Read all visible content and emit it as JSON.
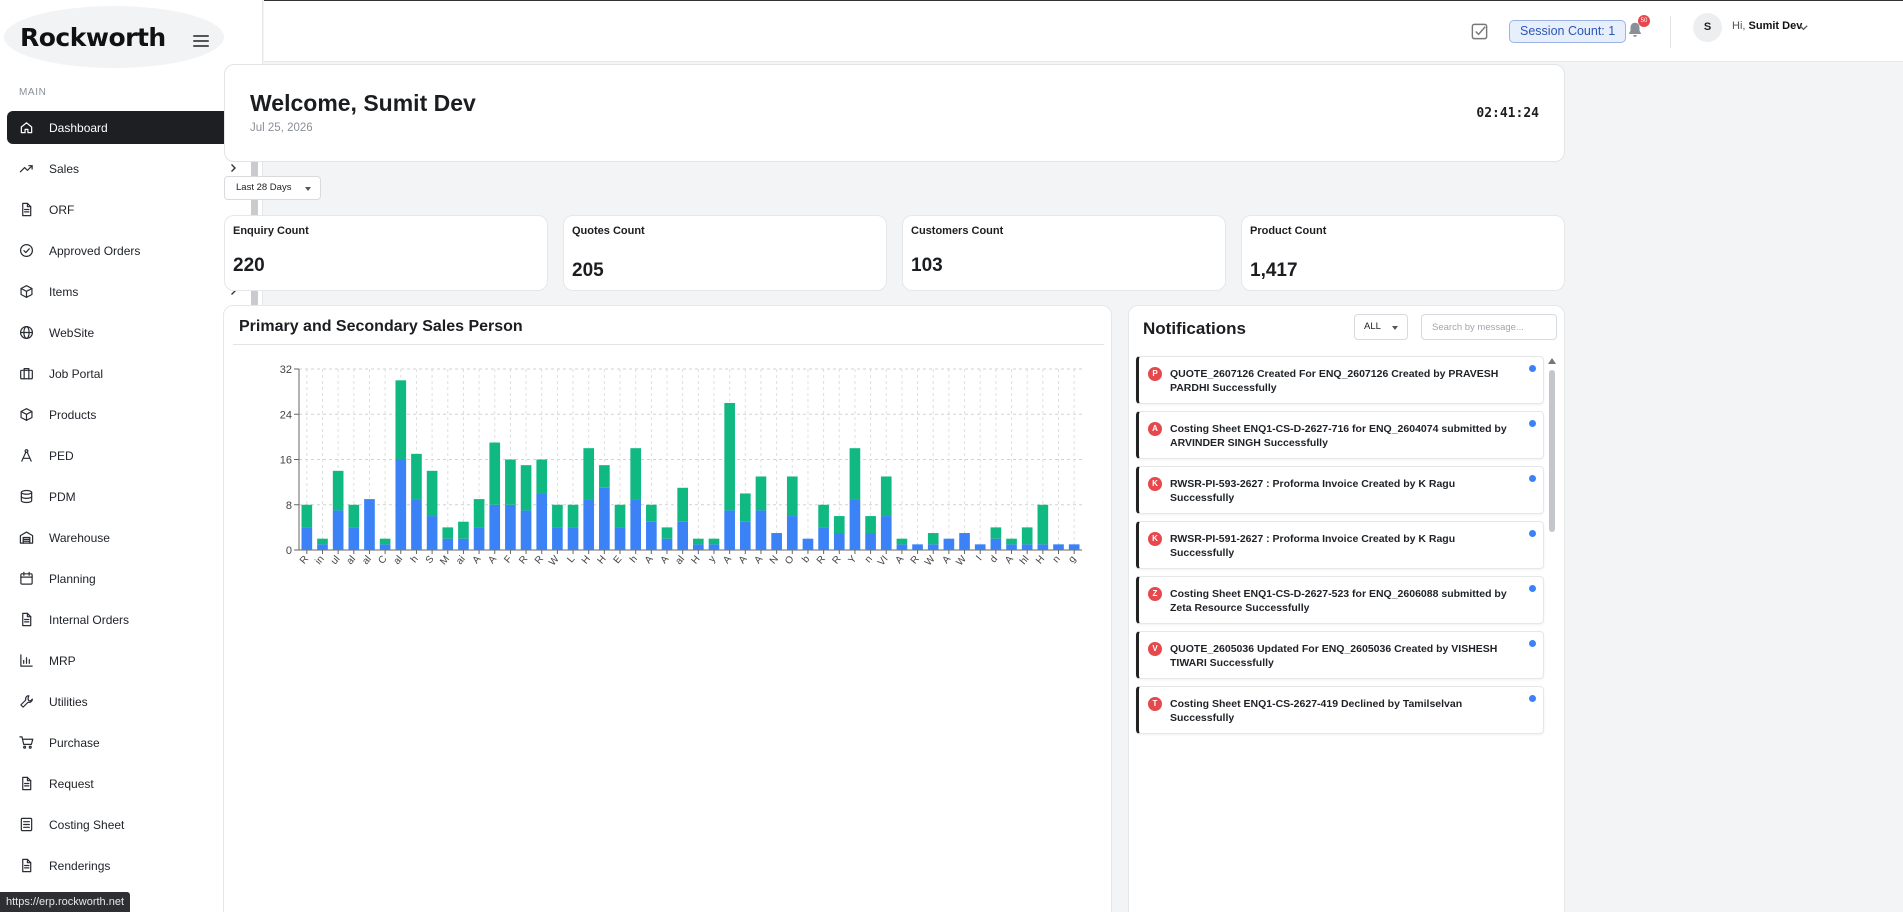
{
  "app": {
    "logo": "Rockworth",
    "url_tooltip": "https://erp.rockworth.net"
  },
  "sidebar": {
    "section": "MAIN",
    "items": [
      {
        "label": "Dashboard",
        "icon": "home-icon",
        "active": true,
        "chevron": false
      },
      {
        "label": "Sales",
        "icon": "trending-up-icon",
        "chevron": true
      },
      {
        "label": "ORF",
        "icon": "document-icon",
        "chevron": false
      },
      {
        "label": "Approved Orders",
        "icon": "check-circle-icon",
        "chevron": false
      },
      {
        "label": "Items",
        "icon": "box-icon",
        "chevron": true
      },
      {
        "label": "WebSite",
        "icon": "globe-icon",
        "chevron": true
      },
      {
        "label": "Job Portal",
        "icon": "briefcase-icon",
        "chevron": true
      },
      {
        "label": "Products",
        "icon": "box-icon",
        "chevron": true
      },
      {
        "label": "PED",
        "icon": "compass-icon",
        "chevron": true
      },
      {
        "label": "PDM",
        "icon": "database-icon",
        "chevron": true
      },
      {
        "label": "Warehouse",
        "icon": "warehouse-icon",
        "chevron": true
      },
      {
        "label": "Planning",
        "icon": "calendar-icon",
        "chevron": true
      },
      {
        "label": "Internal Orders",
        "icon": "document-icon",
        "chevron": true
      },
      {
        "label": "MRP",
        "icon": "bar-chart-icon",
        "chevron": true
      },
      {
        "label": "Utilities",
        "icon": "wrench-icon",
        "chevron": true
      },
      {
        "label": "Purchase",
        "icon": "cart-icon",
        "chevron": true
      },
      {
        "label": "Request",
        "icon": "document-icon",
        "chevron": true
      },
      {
        "label": "Costing Sheet",
        "icon": "spreadsheet-icon",
        "chevron": false
      },
      {
        "label": "Renderings",
        "icon": "document-icon",
        "chevron": true
      }
    ]
  },
  "header": {
    "session_count": "Session Count: 1",
    "notification_badge": "50",
    "avatar_initial": "S",
    "greeting_prefix": "Hi,",
    "user_name": "Sumit Dev"
  },
  "welcome": {
    "title": "Welcome, Sumit Dev",
    "date": "Jul 25, 2026",
    "clock": "02:41:24"
  },
  "range_select": {
    "value": "Last 28 Days"
  },
  "stats": [
    {
      "label": "Enquiry Count",
      "value": "220"
    },
    {
      "label": "Quotes Count",
      "value": "205"
    },
    {
      "label": "Customers Count",
      "value": "103"
    },
    {
      "label": "Product Count",
      "value": "1,417"
    }
  ],
  "chart": {
    "title": "Primary and Secondary Sales Person"
  },
  "chart_data": {
    "type": "bar",
    "stacked": true,
    "ylim": [
      0,
      32
    ],
    "yticks": [
      0,
      8,
      16,
      24,
      32
    ],
    "grid": true,
    "categories": [
      "R",
      "in",
      "ul",
      "al",
      "al",
      "C",
      "al",
      "h",
      "S",
      "M",
      "ai",
      "A",
      "A",
      "F",
      "R",
      "R",
      "W",
      "L",
      "H",
      "H",
      "E",
      "h",
      "A",
      "A",
      "al",
      "H",
      "y",
      "A",
      "A",
      "A",
      "N",
      "O",
      "b",
      "R",
      "R",
      "Y",
      "n",
      "VI",
      "A",
      "R",
      "W",
      "A",
      "W",
      "I",
      "d",
      "A",
      "hl",
      "H",
      "n",
      "g"
    ],
    "series": [
      {
        "color": "#3b82f6",
        "values": [
          4,
          1,
          7,
          4,
          9,
          1,
          16,
          9,
          6,
          2,
          2,
          4,
          8,
          8,
          7,
          10,
          4,
          4,
          9,
          11,
          4,
          9,
          5,
          2,
          5,
          1,
          1,
          7,
          5,
          7,
          3,
          6,
          2,
          4,
          3,
          9,
          3,
          6,
          1,
          1,
          1,
          2,
          3,
          1,
          2,
          1,
          1,
          1,
          1,
          1
        ]
      },
      {
        "color": "#10b981",
        "values": [
          4,
          1,
          7,
          4,
          0,
          1,
          14,
          8,
          8,
          2,
          3,
          5,
          11,
          8,
          8,
          6,
          4,
          4,
          9,
          4,
          4,
          9,
          3,
          2,
          6,
          1,
          1,
          19,
          5,
          6,
          0,
          7,
          0,
          4,
          3,
          9,
          3,
          7,
          1,
          0,
          2,
          0,
          0,
          0,
          2,
          1,
          3,
          7,
          0,
          0
        ]
      }
    ]
  },
  "notifications": {
    "title": "Notifications",
    "filter": "ALL",
    "search_placeholder": "Search by message...",
    "items": [
      {
        "initial": "P",
        "text": "QUOTE_2607126 Created For ENQ_2607126 Created by PRAVESH PARDHI Successfully"
      },
      {
        "initial": "A",
        "text": "Costing Sheet ENQ1-CS-D-2627-716 for ENQ_2604074 submitted by ARVINDER SINGH Successfully"
      },
      {
        "initial": "K",
        "text": "RWSR-PI-593-2627 : Proforma Invoice Created by K Ragu Successfully"
      },
      {
        "initial": "K",
        "text": "RWSR-PI-591-2627 : Proforma Invoice Created by K Ragu Successfully"
      },
      {
        "initial": "Z",
        "text": "Costing Sheet ENQ1-CS-D-2627-523 for ENQ_2606088 submitted by Zeta Resource Successfully"
      },
      {
        "initial": "V",
        "text": "QUOTE_2605036 Updated For ENQ_2605036 Created by VISHESH TIWARI Successfully"
      },
      {
        "initial": "T",
        "text": "Costing Sheet ENQ1-CS-2627-419 Declined by Tamilselvan Successfully"
      }
    ]
  }
}
